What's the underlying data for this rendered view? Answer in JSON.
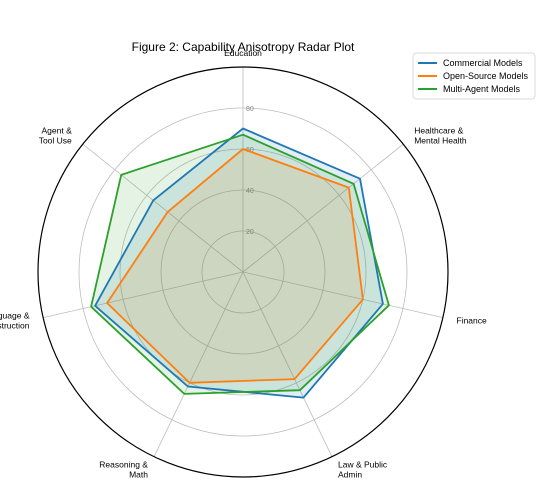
{
  "chart_data": {
    "type": "radar",
    "title": "Figure 2: Capability Anisotropy Radar Plot",
    "axes": [
      [
        "Education"
      ],
      [
        "Healthcare &",
        "Mental Health"
      ],
      [
        "Finance"
      ],
      [
        "Law & Public",
        "Admin"
      ],
      [
        "Reasoning &",
        "Math"
      ],
      [
        "Language &",
        "Instruction"
      ],
      [
        "Agent &",
        "Tool Use"
      ]
    ],
    "rlim": [
      0,
      100
    ],
    "rticks": [
      20,
      40,
      60,
      80
    ],
    "grid": true,
    "legend_position": "top-right",
    "series": [
      {
        "name": "Commercial Models",
        "color": "#1f77b4",
        "values": [
          70,
          73,
          70,
          68,
          62,
          74,
          56
        ]
      },
      {
        "name": "Open-Source Models",
        "color": "#ff7f0e",
        "values": [
          60,
          66,
          60,
          58,
          60,
          68,
          47
        ]
      },
      {
        "name": "Multi-Agent Models",
        "color": "#2ca02c",
        "values": [
          67,
          69,
          73,
          64,
          66,
          76,
          76
        ]
      }
    ]
  }
}
